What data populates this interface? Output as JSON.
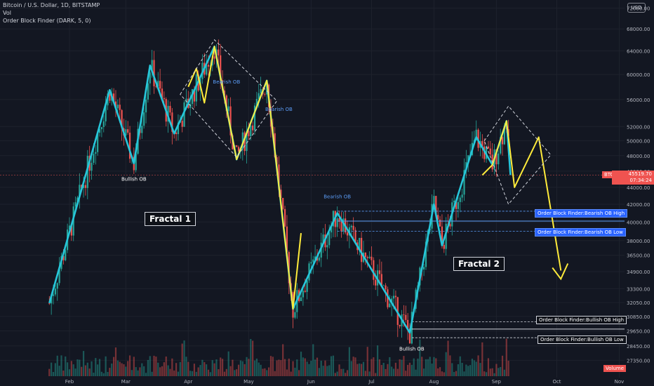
{
  "header": {
    "symbol_line": "Bitcoin / U.S. Dollar, 1D, BITSTAMP",
    "vol_line": "Vol",
    "indicator_line": "Order Block Finder (DARK, 5, 0)",
    "currency_badge": "USD"
  },
  "annotations": {
    "fractal1": "Fractal 1",
    "fractal2": "Fractal 2",
    "bearish_ob": "Bearish OB",
    "bullish_ob": "Bullish OB",
    "ob_bear_high": "Order Block Finder:Bearish OB High",
    "ob_bear_low": "Order Block Finder:Bearish OB Low",
    "ob_bull_high": "Order Block Finder:Bullish OB High",
    "ob_bull_low": "Order Block Finder:Bullish OB Low"
  },
  "price_tag": {
    "ticker": "BTCUSD",
    "price": "45519.70",
    "countdown": "07:34:24",
    "volume_label": "Volume"
  },
  "colors": {
    "background": "#131722",
    "up": "#26a69a",
    "down": "#ef5350",
    "fractal_path": "#ffeb3b",
    "wave": "#26c6da",
    "ob_blue": "#2962ff"
  },
  "chart_data": {
    "type": "candlestick",
    "x_ticks": [
      "Feb",
      "Mar",
      "Apr",
      "May",
      "Jun",
      "Jul",
      "Aug",
      "Sep",
      "Oct",
      "Nov"
    ],
    "y_ticks": [
      72000,
      68000,
      64000,
      60000,
      56000,
      52000,
      50000,
      48000,
      46000,
      44000,
      42000,
      40000,
      38000,
      36500,
      34900,
      33300,
      32050,
      30850,
      29650,
      28450,
      27350
    ],
    "y_scale": "log",
    "last_price": 45519.7,
    "price_path": [
      [
        "Jan 22",
        32000
      ],
      [
        "Feb 21",
        57500
      ],
      [
        "Mar 5",
        47000
      ],
      [
        "Mar 13",
        61500
      ],
      [
        "Mar 25",
        51000
      ],
      [
        "Apr 14",
        64800
      ],
      [
        "Apr 25",
        47500
      ],
      [
        "May 10",
        59000
      ],
      [
        "May 23",
        31500
      ],
      [
        "Jun 14",
        41000
      ],
      [
        "Jul 20",
        29500
      ],
      [
        "Aug 1",
        42000
      ],
      [
        "Aug 5",
        37500
      ],
      [
        "Aug 22",
        50500
      ],
      [
        "Aug 30",
        46800
      ],
      [
        "Sep 6",
        52800
      ],
      [
        "Sep 8",
        45500
      ]
    ],
    "fractal1_path": [
      [
        "Apr 1",
        58000
      ],
      [
        "Apr 5",
        61000
      ],
      [
        "Apr 9",
        55500
      ],
      [
        "Apr 14",
        64800
      ],
      [
        "Apr 25",
        47500
      ],
      [
        "May 10",
        59000
      ],
      [
        "May 23",
        31500
      ],
      [
        "May 27",
        38800
      ]
    ],
    "fractal2_projection": [
      [
        "Aug 25",
        45500
      ],
      [
        "Aug 30",
        46800
      ],
      [
        "Sep 6",
        52800
      ],
      [
        "Sep 10",
        44000
      ],
      [
        "Sep 22",
        50500
      ],
      [
        "Oct 3",
        35000
      ]
    ],
    "order_blocks": [
      {
        "label": "Bearish OB High",
        "price": 41200
      },
      {
        "label": "Bearish OB Low",
        "price": 39000
      },
      {
        "label": "Bullish OB High",
        "price": 30400
      },
      {
        "label": "Bullish OB Low",
        "price": 29100
      }
    ]
  }
}
